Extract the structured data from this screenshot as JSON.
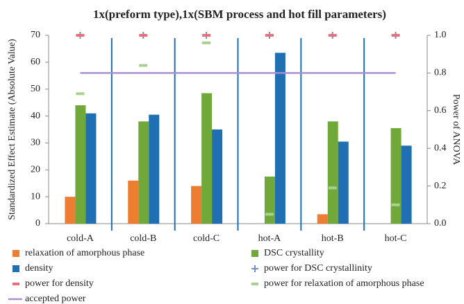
{
  "chart_data": {
    "type": "combo",
    "title": "1x(preform type),1x(SBM process and hot fill parameters)",
    "y_label": "Standardized Effect Estimate (Absolute Value)",
    "y2_label": "Power of ANOVA",
    "categories": [
      "cold-A",
      "cold-B",
      "cold-C",
      "hot-A",
      "hot-B",
      "hot-C"
    ],
    "ylim": [
      0,
      70
    ],
    "yticks": [
      0,
      10,
      20,
      30,
      40,
      50,
      60,
      70
    ],
    "y2lim": [
      0,
      1
    ],
    "y2ticks": [
      {
        "value": 0,
        "label": "0.0"
      },
      0.2,
      0.4,
      0.6,
      0.8,
      {
        "value": 1,
        "label": "1.0"
      }
    ],
    "divider_color": "#1a6fb5",
    "series": [
      {
        "name": "relaxation of amorphous phase",
        "color": "#ed7d31",
        "style": "bar",
        "values": [
          10,
          16,
          14,
          null,
          3.5,
          null
        ]
      },
      {
        "name": "DSC crystallity",
        "color": "#70a83a",
        "style": "bar",
        "values": [
          44,
          38,
          48.5,
          17.5,
          38,
          35.5
        ]
      },
      {
        "name": "density",
        "color": "#1f6fb2",
        "style": "bar",
        "values": [
          41,
          40.5,
          35,
          63.5,
          30.5,
          29
        ]
      },
      {
        "name": "power for DSC crystallinity",
        "color": "#6f8fc8",
        "style": "plus",
        "axis": "y2",
        "values": [
          1,
          1,
          1,
          1,
          1,
          1
        ]
      },
      {
        "name": "power for density",
        "color": "#e8707a",
        "style": "dash",
        "axis": "y2",
        "values": [
          1,
          1,
          1,
          1,
          1,
          1
        ]
      },
      {
        "name": "power for relaxation of amorphous phase",
        "color": "#a9d18e",
        "style": "dash",
        "axis": "y2",
        "values": [
          0.69,
          0.84,
          0.96,
          0.05,
          0.19,
          0.1
        ]
      },
      {
        "name": "accepted power",
        "color": "#a98fd0",
        "style": "line",
        "axis": "y2",
        "values": [
          0.8,
          0.8,
          0.8,
          0.8,
          0.8,
          0.8
        ]
      }
    ]
  }
}
